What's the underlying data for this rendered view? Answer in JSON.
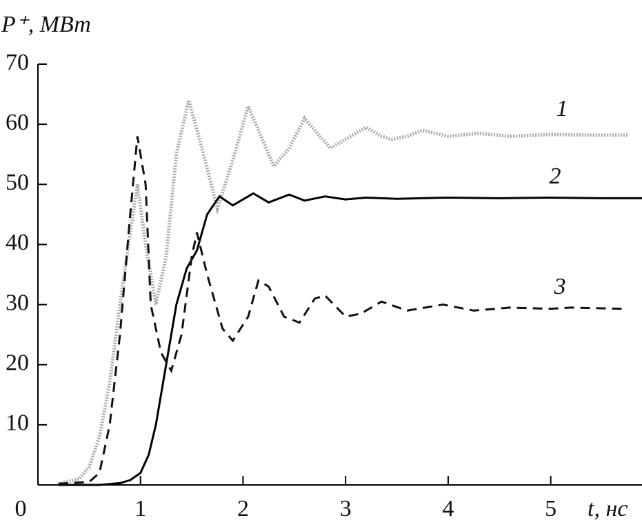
{
  "chart_data": {
    "type": "line",
    "y_label": "P⁺, МВт",
    "x_label": "t, нс",
    "xlim": [
      0,
      5.89
    ],
    "ylim": [
      0,
      70
    ],
    "xticks": [
      1,
      2,
      3,
      4,
      5
    ],
    "yticks": [
      0,
      10,
      20,
      30,
      40,
      50,
      60,
      70
    ],
    "series": [
      {
        "name": "1",
        "color": "#aaaaaa",
        "style": "dotted",
        "x": [
          0.2,
          0.4,
          0.5,
          0.6,
          0.7,
          0.8,
          0.9,
          0.97,
          1.05,
          1.15,
          1.25,
          1.35,
          1.47,
          1.6,
          1.75,
          1.9,
          2.05,
          2.2,
          2.3,
          2.45,
          2.6,
          2.75,
          2.85,
          3.0,
          3.2,
          3.35,
          3.45,
          3.6,
          3.75,
          4.0,
          4.3,
          4.6,
          5.0,
          5.4,
          5.75
        ],
        "values": [
          0.2,
          1,
          3,
          8,
          17,
          30,
          42,
          50,
          40,
          30,
          38,
          55,
          64,
          56,
          46,
          54,
          63,
          57,
          53,
          56,
          61,
          58,
          56,
          57.5,
          59.5,
          58,
          57.5,
          58,
          59,
          58,
          58.5,
          58,
          58.3,
          58.2,
          58.2
        ]
      },
      {
        "name": "2",
        "color": "#000000",
        "style": "solid",
        "x": [
          0.2,
          0.6,
          0.8,
          0.9,
          1.0,
          1.08,
          1.15,
          1.25,
          1.35,
          1.45,
          1.55,
          1.65,
          1.77,
          1.9,
          2.0,
          2.1,
          2.25,
          2.45,
          2.6,
          2.8,
          3.0,
          3.2,
          3.5,
          4.0,
          4.5,
          5.0,
          5.5,
          5.89
        ],
        "values": [
          0,
          0,
          0.3,
          0.8,
          2,
          5,
          10,
          20,
          30,
          36,
          39,
          45,
          48,
          46.5,
          47.5,
          48.5,
          47,
          48.3,
          47.3,
          48,
          47.5,
          47.8,
          47.6,
          47.8,
          47.7,
          47.8,
          47.7,
          47.7
        ]
      },
      {
        "name": "3",
        "color": "#111111",
        "style": "dashed",
        "x": [
          0.2,
          0.5,
          0.6,
          0.7,
          0.8,
          0.9,
          0.97,
          1.05,
          1.1,
          1.2,
          1.3,
          1.4,
          1.5,
          1.55,
          1.65,
          1.8,
          1.9,
          2.05,
          2.15,
          2.25,
          2.4,
          2.55,
          2.7,
          2.8,
          3.0,
          3.15,
          3.35,
          3.6,
          3.95,
          4.25,
          4.6,
          5.0,
          5.2,
          5.7
        ],
        "values": [
          0.2,
          0.5,
          2,
          10,
          25,
          45,
          58,
          50,
          30,
          22,
          19,
          25,
          38,
          42,
          35,
          26,
          24,
          28,
          34,
          33,
          28,
          27,
          31,
          31.5,
          28,
          28.5,
          30.5,
          29,
          30,
          29,
          29.5,
          29.3,
          29.5,
          29.3
        ]
      }
    ]
  }
}
